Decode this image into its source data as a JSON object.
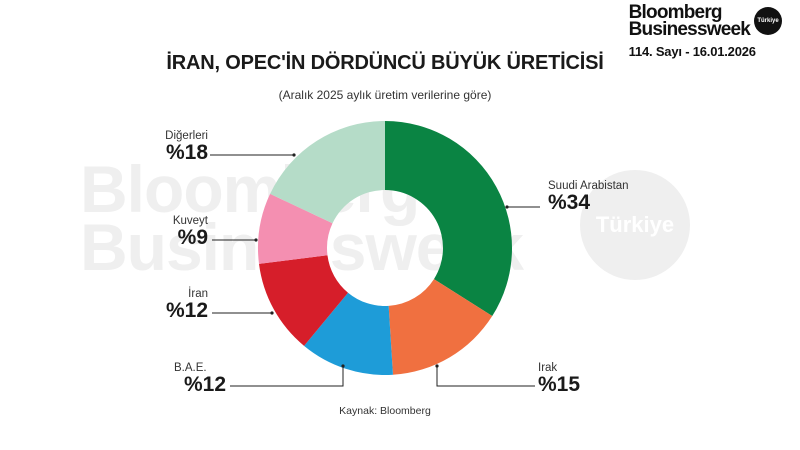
{
  "brand": {
    "line1": "Bloomberg",
    "line2": "Businessweek",
    "badge": "Türkiye",
    "issue": "114. Sayı - 16.01.2026"
  },
  "watermark": {
    "line1": "Bloomberg",
    "line2": "Businessweek",
    "circle_text": "Türkiye"
  },
  "chart_data": {
    "type": "pie",
    "variant": "donut",
    "title": "İRAN, OPEC'İN DÖRDÜNCÜ BÜYÜK ÜRETİCİSİ",
    "subtitle": "(Aralık 2025 aylık üretim verilerine göre)",
    "source": "Kaynak: Bloomberg",
    "unit": "%",
    "categories": [
      "Suudi Arabistan",
      "Irak",
      "B.A.E.",
      "İran",
      "Kuveyt",
      "Diğerleri"
    ],
    "values": [
      34,
      15,
      12,
      12,
      9,
      18
    ],
    "labels": [
      "%34",
      "%15",
      "%12",
      "%12",
      "%9",
      "%18"
    ],
    "colors": [
      "#0a8443",
      "#f07040",
      "#1e9cd8",
      "#d61e2a",
      "#f48fb1",
      "#b5dcc8"
    ],
    "start_angle": "12 o'clock",
    "direction": "clockwise"
  },
  "labels": {
    "saudi": {
      "name": "Suudi Arabistan",
      "pct": "%34"
    },
    "iraq": {
      "name": "Irak",
      "pct": "%15"
    },
    "uae": {
      "name": "B.A.E.",
      "pct": "%12"
    },
    "iran": {
      "name": "İran",
      "pct": "%12"
    },
    "kuwait": {
      "name": "Kuveyt",
      "pct": "%9"
    },
    "others": {
      "name": "Diğerleri",
      "pct": "%18"
    }
  }
}
